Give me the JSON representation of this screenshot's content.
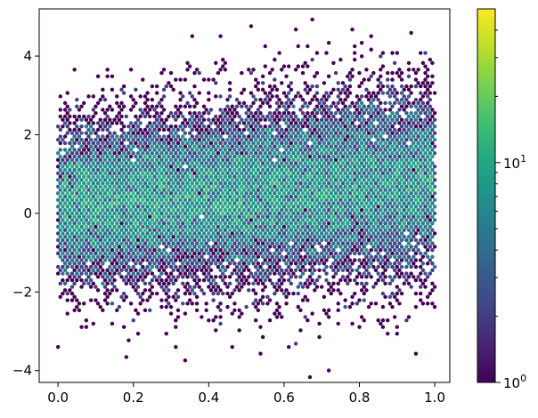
{
  "chart_data": {
    "type": "hexbin",
    "title": "",
    "xlabel": "",
    "ylabel": "",
    "xlim": [
      -0.05,
      1.04
    ],
    "ylim": [
      -4.3,
      5.2
    ],
    "x_ticks": [
      0.0,
      0.2,
      0.4,
      0.6,
      0.8,
      1.0
    ],
    "x_tick_labels": [
      "0.0",
      "0.2",
      "0.4",
      "0.6",
      "0.8",
      "1.0"
    ],
    "y_ticks": [
      -4,
      -2,
      0,
      2,
      4
    ],
    "y_tick_labels": [
      "−4",
      "−2",
      "0",
      "2",
      "4"
    ],
    "grid": false,
    "description_of_data": {
      "x_range": [
        0.0,
        1.0
      ],
      "y_mean_at_x0": 0.2,
      "y_mean_at_x1": 0.8,
      "y_spread_sd": 1.0
    },
    "colorbar": {
      "scale": "log",
      "colormap": "viridis",
      "range": [
        1,
        50
      ],
      "major_ticks": [
        1,
        10
      ],
      "major_tick_base": "10",
      "major_tick_exponents": [
        "0",
        "1"
      ],
      "minor_ticks": [
        2,
        3,
        4,
        5,
        6,
        7,
        8,
        9,
        20,
        30,
        40
      ]
    }
  }
}
